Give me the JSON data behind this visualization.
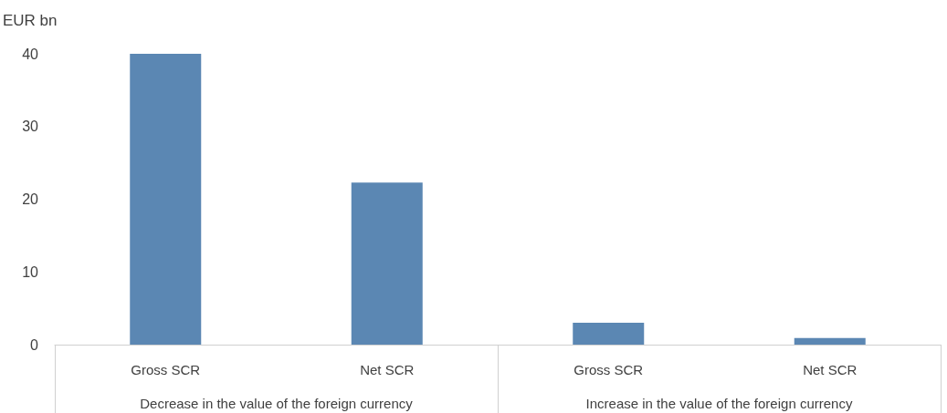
{
  "chart_data": {
    "type": "bar",
    "ylabel": "EUR bn",
    "categories": [
      "Gross SCR",
      "Net SCR",
      "Gross SCR",
      "Net SCR"
    ],
    "values": [
      40,
      22.3,
      3.0,
      0.9
    ],
    "color": "#5b87b3",
    "ylim": [
      0,
      40
    ],
    "yticks": [
      0,
      10,
      20,
      30,
      40
    ],
    "grid": false,
    "annotations": [
      "Decrease in the value of the foreign currency",
      "Increase in the value of the foreign currency"
    ]
  }
}
